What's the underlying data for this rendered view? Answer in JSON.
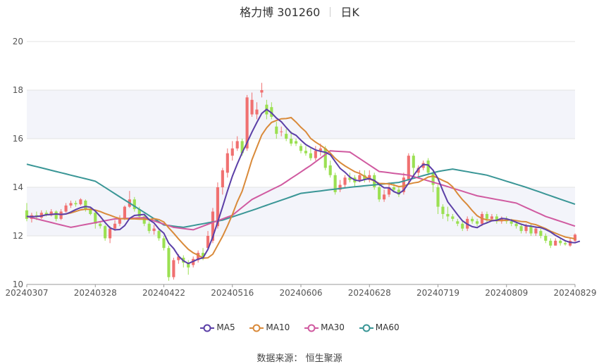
{
  "title": {
    "name": "格力博 301260",
    "period": "日K"
  },
  "source": {
    "label": "数据来源：",
    "value": "恒生聚源"
  },
  "colors": {
    "up": "#f07070",
    "down": "#9be052",
    "ma5": "#5b3fa7",
    "ma10": "#d98a3a",
    "ma30": "#d05aa0",
    "ma60": "#3a9696",
    "band": "#f3f4fa",
    "grid": "#e3e3e3"
  },
  "chart_data": {
    "type": "candlestick",
    "y_ticks": [
      "10",
      "12",
      "14",
      "16",
      "18",
      "20"
    ],
    "ylim": [
      10,
      20
    ],
    "x_ticks": [
      "20240307",
      "20240328",
      "20240422",
      "20240516",
      "20240606",
      "20240628",
      "20240719",
      "20240809",
      "20240829"
    ],
    "x_tick_index": [
      0,
      14,
      28,
      42,
      56,
      70,
      84,
      98,
      112
    ],
    "legend": [
      "MA5",
      "MA10",
      "MA30",
      "MA60"
    ],
    "candles": [
      [
        13.05,
        12.7,
        13.35,
        12.6
      ],
      [
        12.7,
        12.85,
        12.95,
        12.55
      ],
      [
        12.85,
        12.8,
        13.0,
        12.65
      ],
      [
        12.75,
        12.95,
        13.05,
        12.7
      ],
      [
        12.95,
        12.85,
        13.05,
        12.8
      ],
      [
        12.85,
        13.0,
        13.1,
        12.8
      ],
      [
        13.0,
        12.7,
        13.05,
        12.6
      ],
      [
        12.7,
        13.0,
        13.1,
        12.65
      ],
      [
        13.0,
        13.25,
        13.35,
        12.95
      ],
      [
        13.25,
        13.35,
        13.45,
        13.15
      ],
      [
        13.35,
        13.3,
        13.45,
        13.2
      ],
      [
        13.3,
        13.5,
        13.55,
        13.25
      ],
      [
        13.45,
        13.1,
        13.5,
        13.0
      ],
      [
        13.1,
        12.9,
        13.15,
        12.85
      ],
      [
        12.95,
        12.5,
        13.0,
        12.3
      ],
      [
        12.5,
        12.4,
        12.6,
        12.3
      ],
      [
        12.4,
        11.9,
        12.45,
        11.8
      ],
      [
        11.9,
        12.3,
        12.4,
        11.7
      ],
      [
        12.3,
        12.5,
        12.65,
        12.2
      ],
      [
        12.5,
        12.7,
        12.85,
        12.4
      ],
      [
        12.7,
        13.2,
        13.25,
        12.65
      ],
      [
        13.2,
        13.5,
        13.85,
        13.15
      ],
      [
        13.5,
        13.1,
        13.6,
        13.0
      ],
      [
        13.1,
        12.8,
        13.2,
        12.7
      ],
      [
        12.8,
        12.5,
        12.9,
        12.4
      ],
      [
        12.5,
        12.2,
        12.6,
        12.1
      ],
      [
        12.2,
        12.3,
        12.45,
        12.05
      ],
      [
        12.2,
        11.9,
        12.3,
        11.8
      ],
      [
        11.9,
        11.5,
        12.0,
        11.4
      ],
      [
        11.5,
        10.3,
        11.6,
        10.15
      ],
      [
        10.3,
        11.0,
        11.1,
        10.2
      ],
      [
        11.0,
        11.15,
        11.25,
        10.85
      ],
      [
        11.1,
        10.9,
        11.2,
        10.7
      ],
      [
        10.9,
        10.7,
        11.0,
        10.4
      ],
      [
        10.8,
        11.05,
        11.15,
        10.7
      ],
      [
        11.0,
        11.3,
        11.4,
        10.9
      ],
      [
        11.3,
        11.05,
        11.5,
        11.0
      ],
      [
        11.5,
        12.0,
        12.2,
        11.4
      ],
      [
        11.8,
        13.0,
        13.15,
        11.7
      ],
      [
        12.4,
        14.0,
        14.2,
        12.3
      ],
      [
        14.0,
        14.7,
        14.8,
        13.7
      ],
      [
        14.6,
        15.4,
        15.6,
        14.4
      ],
      [
        15.3,
        15.6,
        15.9,
        15.1
      ],
      [
        15.6,
        15.9,
        16.1,
        15.5
      ],
      [
        15.9,
        15.4,
        16.0,
        15.3
      ],
      [
        15.6,
        17.7,
        17.8,
        15.5
      ],
      [
        17.0,
        17.6,
        17.9,
        16.9
      ],
      [
        17.0,
        17.2,
        17.5,
        16.8
      ],
      [
        17.9,
        18.0,
        18.3,
        17.7
      ],
      [
        17.4,
        17.0,
        17.6,
        16.8
      ],
      [
        17.3,
        16.9,
        17.5,
        16.8
      ],
      [
        16.5,
        16.2,
        16.7,
        16.0
      ],
      [
        16.3,
        16.3,
        16.5,
        16.1
      ],
      [
        16.2,
        16.0,
        16.4,
        15.9
      ],
      [
        16.0,
        15.8,
        16.3,
        15.7
      ],
      [
        15.9,
        15.8,
        16.0,
        15.7
      ],
      [
        15.7,
        15.5,
        15.8,
        15.4
      ],
      [
        15.5,
        15.4,
        15.7,
        15.3
      ],
      [
        15.4,
        15.2,
        15.6,
        15.1
      ],
      [
        15.2,
        15.5,
        15.7,
        15.1
      ],
      [
        15.5,
        15.6,
        15.8,
        15.3
      ],
      [
        15.6,
        14.8,
        15.7,
        14.7
      ],
      [
        14.9,
        14.5,
        15.1,
        14.4
      ],
      [
        14.5,
        13.8,
        14.6,
        13.7
      ],
      [
        13.9,
        14.1,
        14.3,
        13.8
      ],
      [
        14.1,
        14.4,
        14.5,
        14.0
      ],
      [
        14.4,
        14.3,
        14.6,
        14.2
      ],
      [
        14.4,
        14.2,
        14.5,
        14.0
      ],
      [
        14.3,
        14.5,
        14.7,
        14.2
      ],
      [
        14.5,
        14.3,
        14.7,
        14.2
      ],
      [
        14.3,
        14.5,
        14.7,
        14.2
      ],
      [
        14.5,
        14.0,
        14.6,
        13.9
      ],
      [
        14.0,
        13.5,
        14.1,
        13.4
      ],
      [
        13.5,
        13.7,
        13.9,
        13.4
      ],
      [
        13.7,
        14.0,
        14.2,
        13.6
      ],
      [
        14.0,
        13.9,
        14.2,
        13.8
      ],
      [
        13.9,
        13.7,
        14.0,
        13.6
      ],
      [
        13.8,
        14.4,
        14.6,
        13.7
      ],
      [
        14.3,
        15.3,
        15.4,
        14.2
      ],
      [
        15.3,
        14.8,
        15.4,
        14.5
      ],
      [
        14.6,
        14.8,
        14.9,
        14.4
      ],
      [
        14.8,
        15.0,
        15.1,
        14.7
      ],
      [
        15.1,
        14.6,
        15.2,
        14.5
      ],
      [
        14.6,
        14.1,
        14.7,
        13.8
      ],
      [
        14.0,
        13.2,
        14.1,
        12.9
      ],
      [
        13.2,
        12.9,
        13.3,
        12.7
      ],
      [
        12.9,
        12.8,
        13.2,
        12.6
      ],
      [
        12.8,
        12.7,
        12.9,
        12.6
      ],
      [
        12.6,
        12.5,
        12.7,
        12.4
      ],
      [
        12.5,
        12.3,
        12.6,
        12.2
      ],
      [
        12.3,
        12.7,
        12.8,
        12.2
      ],
      [
        12.7,
        12.6,
        12.8,
        12.5
      ],
      [
        12.6,
        12.5,
        12.7,
        12.4
      ],
      [
        12.5,
        12.9,
        13.0,
        12.4
      ],
      [
        12.9,
        12.7,
        13.0,
        12.5
      ],
      [
        12.7,
        12.8,
        12.9,
        12.6
      ],
      [
        12.8,
        12.6,
        12.9,
        12.5
      ],
      [
        12.6,
        12.7,
        12.8,
        12.5
      ],
      [
        12.7,
        12.6,
        12.8,
        12.5
      ],
      [
        12.6,
        12.5,
        12.7,
        12.4
      ],
      [
        12.5,
        12.4,
        12.6,
        12.3
      ],
      [
        12.4,
        12.2,
        12.5,
        12.1
      ],
      [
        12.2,
        12.4,
        12.5,
        12.1
      ],
      [
        12.4,
        12.1,
        12.5,
        12.0
      ],
      [
        12.1,
        12.3,
        12.4,
        12.0
      ],
      [
        12.2,
        12.0,
        12.3,
        11.9
      ],
      [
        12.0,
        11.8,
        12.1,
        11.7
      ],
      [
        11.8,
        11.6,
        11.9,
        11.5
      ],
      [
        11.6,
        11.8,
        11.9,
        11.6
      ],
      [
        11.8,
        11.7,
        11.9,
        11.6
      ],
      [
        11.7,
        11.65,
        11.8,
        11.6
      ],
      [
        11.6,
        11.8,
        11.9,
        11.55
      ],
      [
        11.8,
        12.05,
        12.1,
        11.7
      ]
    ],
    "ma5": [
      12.8,
      12.79,
      12.8,
      12.82,
      12.87,
      12.88,
      12.9,
      12.88,
      12.9,
      12.98,
      13.08,
      13.16,
      13.21,
      13.18,
      13.02,
      12.8,
      12.55,
      12.33,
      12.25,
      12.26,
      12.42,
      12.72,
      12.84,
      12.86,
      12.88,
      12.66,
      12.53,
      12.28,
      12.11,
      11.7,
      11.48,
      11.17,
      10.97,
      10.86,
      10.95,
      11.04,
      11.1,
      11.44,
      11.96,
      12.57,
      13.2,
      13.85,
      14.46,
      14.96,
      15.42,
      15.84,
      16.27,
      16.67,
      17.04,
      17.21,
      17.06,
      16.85,
      16.7,
      16.46,
      16.24,
      16.14,
      15.94,
      15.76,
      15.64,
      15.54,
      15.48,
      15.44,
      15.34,
      15.06,
      14.78,
      14.62,
      14.42,
      14.3,
      14.26,
      14.32,
      14.36,
      14.28,
      14.12,
      13.98,
      13.98,
      13.82,
      13.74,
      13.88,
      14.17,
      14.48,
      14.76,
      14.94,
      14.92,
      14.7,
      14.36,
      13.86,
      13.4,
      13.14,
      12.87,
      12.62,
      12.48,
      12.38,
      12.34,
      12.46,
      12.54,
      12.62,
      12.64,
      12.72,
      12.7,
      12.64,
      12.56,
      12.48,
      12.42,
      12.4,
      12.36,
      12.34,
      12.26,
      12.16,
      12.02,
      11.91,
      11.8,
      11.73,
      11.72,
      11.78
    ]
  }
}
